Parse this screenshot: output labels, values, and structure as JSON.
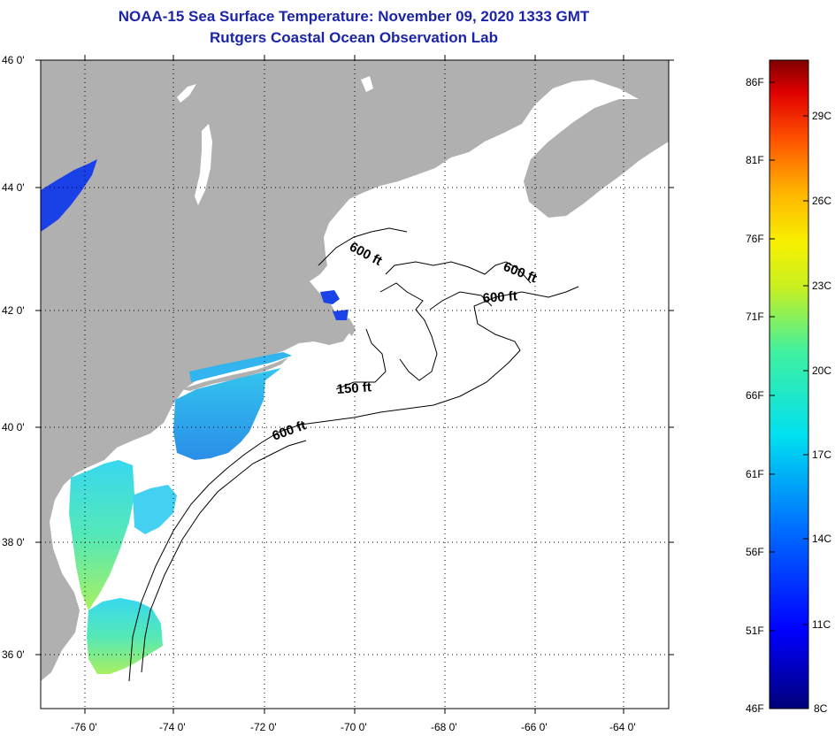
{
  "title": {
    "line1": "NOAA-15 Sea Surface Temperature:  November 09, 2020 1333 GMT",
    "line2": "Rutgers Coastal Ocean Observation Lab"
  },
  "colors": {
    "title": "#1c24a8",
    "land": "#b0b0b0",
    "ocean_no_data": "#ffffff"
  },
  "map": {
    "lon_range": [
      -77,
      -63
    ],
    "lat_range": [
      35,
      46
    ],
    "lon_ticks": [
      "-76 0'",
      "-74 0'",
      "-72 0'",
      "-70 0'",
      "-68 0'",
      "-66 0'",
      "-64 0'"
    ],
    "lat_ticks": [
      "46 0'",
      "44 0'",
      "42 0'",
      "40 0'",
      "38 0'",
      "36 0'"
    ],
    "contour_labels": [
      "600 ft",
      "600 ft",
      "600 ft",
      "150 ft",
      "600 ft"
    ]
  },
  "colorbar": {
    "fahrenheit_labels": [
      "86F",
      "81F",
      "76F",
      "71F",
      "66F",
      "61F",
      "56F",
      "51F",
      "46F"
    ],
    "celsius_labels": [
      "29C",
      "26C",
      "23C",
      "20C",
      "17C",
      "14C",
      "11C",
      "8C"
    ]
  }
}
